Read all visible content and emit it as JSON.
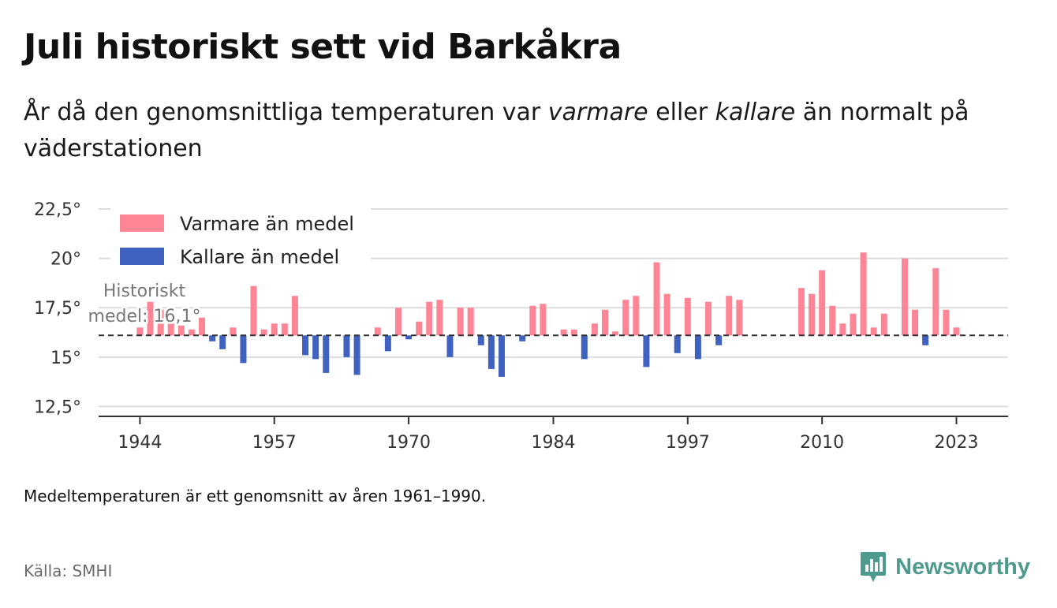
{
  "title": "Juli historiskt sett vid Barkåkra",
  "subtitle": {
    "part1": "År då den genomsnittliga temperaturen var ",
    "warm_word": "varmare",
    "part2": " eller ",
    "cold_word": "kallare",
    "part3": " än normalt på väderstationen"
  },
  "note": "Medeltemperaturen är ett genomsnitt av åren 1961–1990.",
  "source": "Källa: SMHI",
  "brand": {
    "name": "Newsworthy",
    "icon": "newsworthy-logo-icon"
  },
  "colors": {
    "warm": "#fd8596",
    "cold": "#3f62c0",
    "grid": "#dddddd",
    "axis": "#333333",
    "brand": "#4e9a8e"
  },
  "chart_data": {
    "type": "bar",
    "title": "Juli historiskt sett vid Barkåkra",
    "xlabel": "",
    "ylabel": "",
    "baseline": 16.1,
    "baseline_label": [
      "Historiskt",
      "medel: 16,1°"
    ],
    "ylim": [
      12,
      22.5
    ],
    "yticks": [
      12.5,
      15,
      17.5,
      20,
      22.5
    ],
    "ytick_labels": [
      "12,5°",
      "15°",
      "17,5°",
      "20°",
      "22,5°"
    ],
    "xlim": [
      1940,
      2028
    ],
    "xticks": [
      1944,
      1957,
      1970,
      1984,
      1997,
      2010,
      2023
    ],
    "xtick_labels": [
      "1944",
      "1957",
      "1970",
      "1984",
      "1997",
      "2010",
      "2023"
    ],
    "legend": [
      {
        "label": "Varmare än medel",
        "color": "#fd8596"
      },
      {
        "label": "Kallare än medel",
        "color": "#3f62c0"
      }
    ],
    "legend_position": "top-left",
    "series": [
      {
        "name": "Julitemperatur",
        "x": [
          1944,
          1945,
          1946,
          1947,
          1948,
          1949,
          1950,
          1951,
          1952,
          1953,
          1954,
          1955,
          1956,
          1957,
          1958,
          1959,
          1960,
          1961,
          1962,
          1963,
          1964,
          1965,
          1966,
          1967,
          1968,
          1969,
          1970,
          1971,
          1972,
          1973,
          1974,
          1975,
          1976,
          1977,
          1978,
          1979,
          1980,
          1981,
          1982,
          1983,
          1984,
          1985,
          1986,
          1987,
          1988,
          1989,
          1990,
          1991,
          1992,
          1993,
          1994,
          1995,
          1996,
          1997,
          1998,
          1999,
          2000,
          2001,
          2002,
          2003,
          2008,
          2009,
          2010,
          2011,
          2012,
          2013,
          2014,
          2015,
          2016,
          2017,
          2018,
          2019,
          2020,
          2021,
          2022,
          2023
        ],
        "values": [
          16.5,
          17.8,
          17.4,
          16.7,
          16.6,
          16.4,
          17.0,
          15.8,
          15.4,
          16.5,
          14.7,
          18.6,
          16.4,
          16.7,
          16.7,
          18.1,
          15.1,
          14.9,
          14.2,
          16.1,
          15.0,
          14.1,
          16.1,
          16.5,
          15.3,
          17.5,
          15.9,
          16.8,
          17.8,
          17.9,
          15.0,
          17.5,
          17.5,
          15.6,
          14.4,
          14.0,
          16.1,
          15.8,
          17.6,
          17.7,
          16.1,
          16.4,
          16.4,
          14.9,
          16.7,
          17.4,
          16.3,
          17.9,
          18.1,
          14.5,
          19.8,
          18.2,
          15.2,
          18.0,
          14.9,
          17.8,
          15.6,
          18.1,
          17.9,
          16.1,
          18.5,
          18.2,
          19.4,
          17.6,
          16.7,
          17.2,
          20.3,
          16.5,
          17.2,
          16.1,
          20.0,
          17.4,
          15.6,
          19.5,
          17.4,
          16.5
        ]
      }
    ]
  }
}
